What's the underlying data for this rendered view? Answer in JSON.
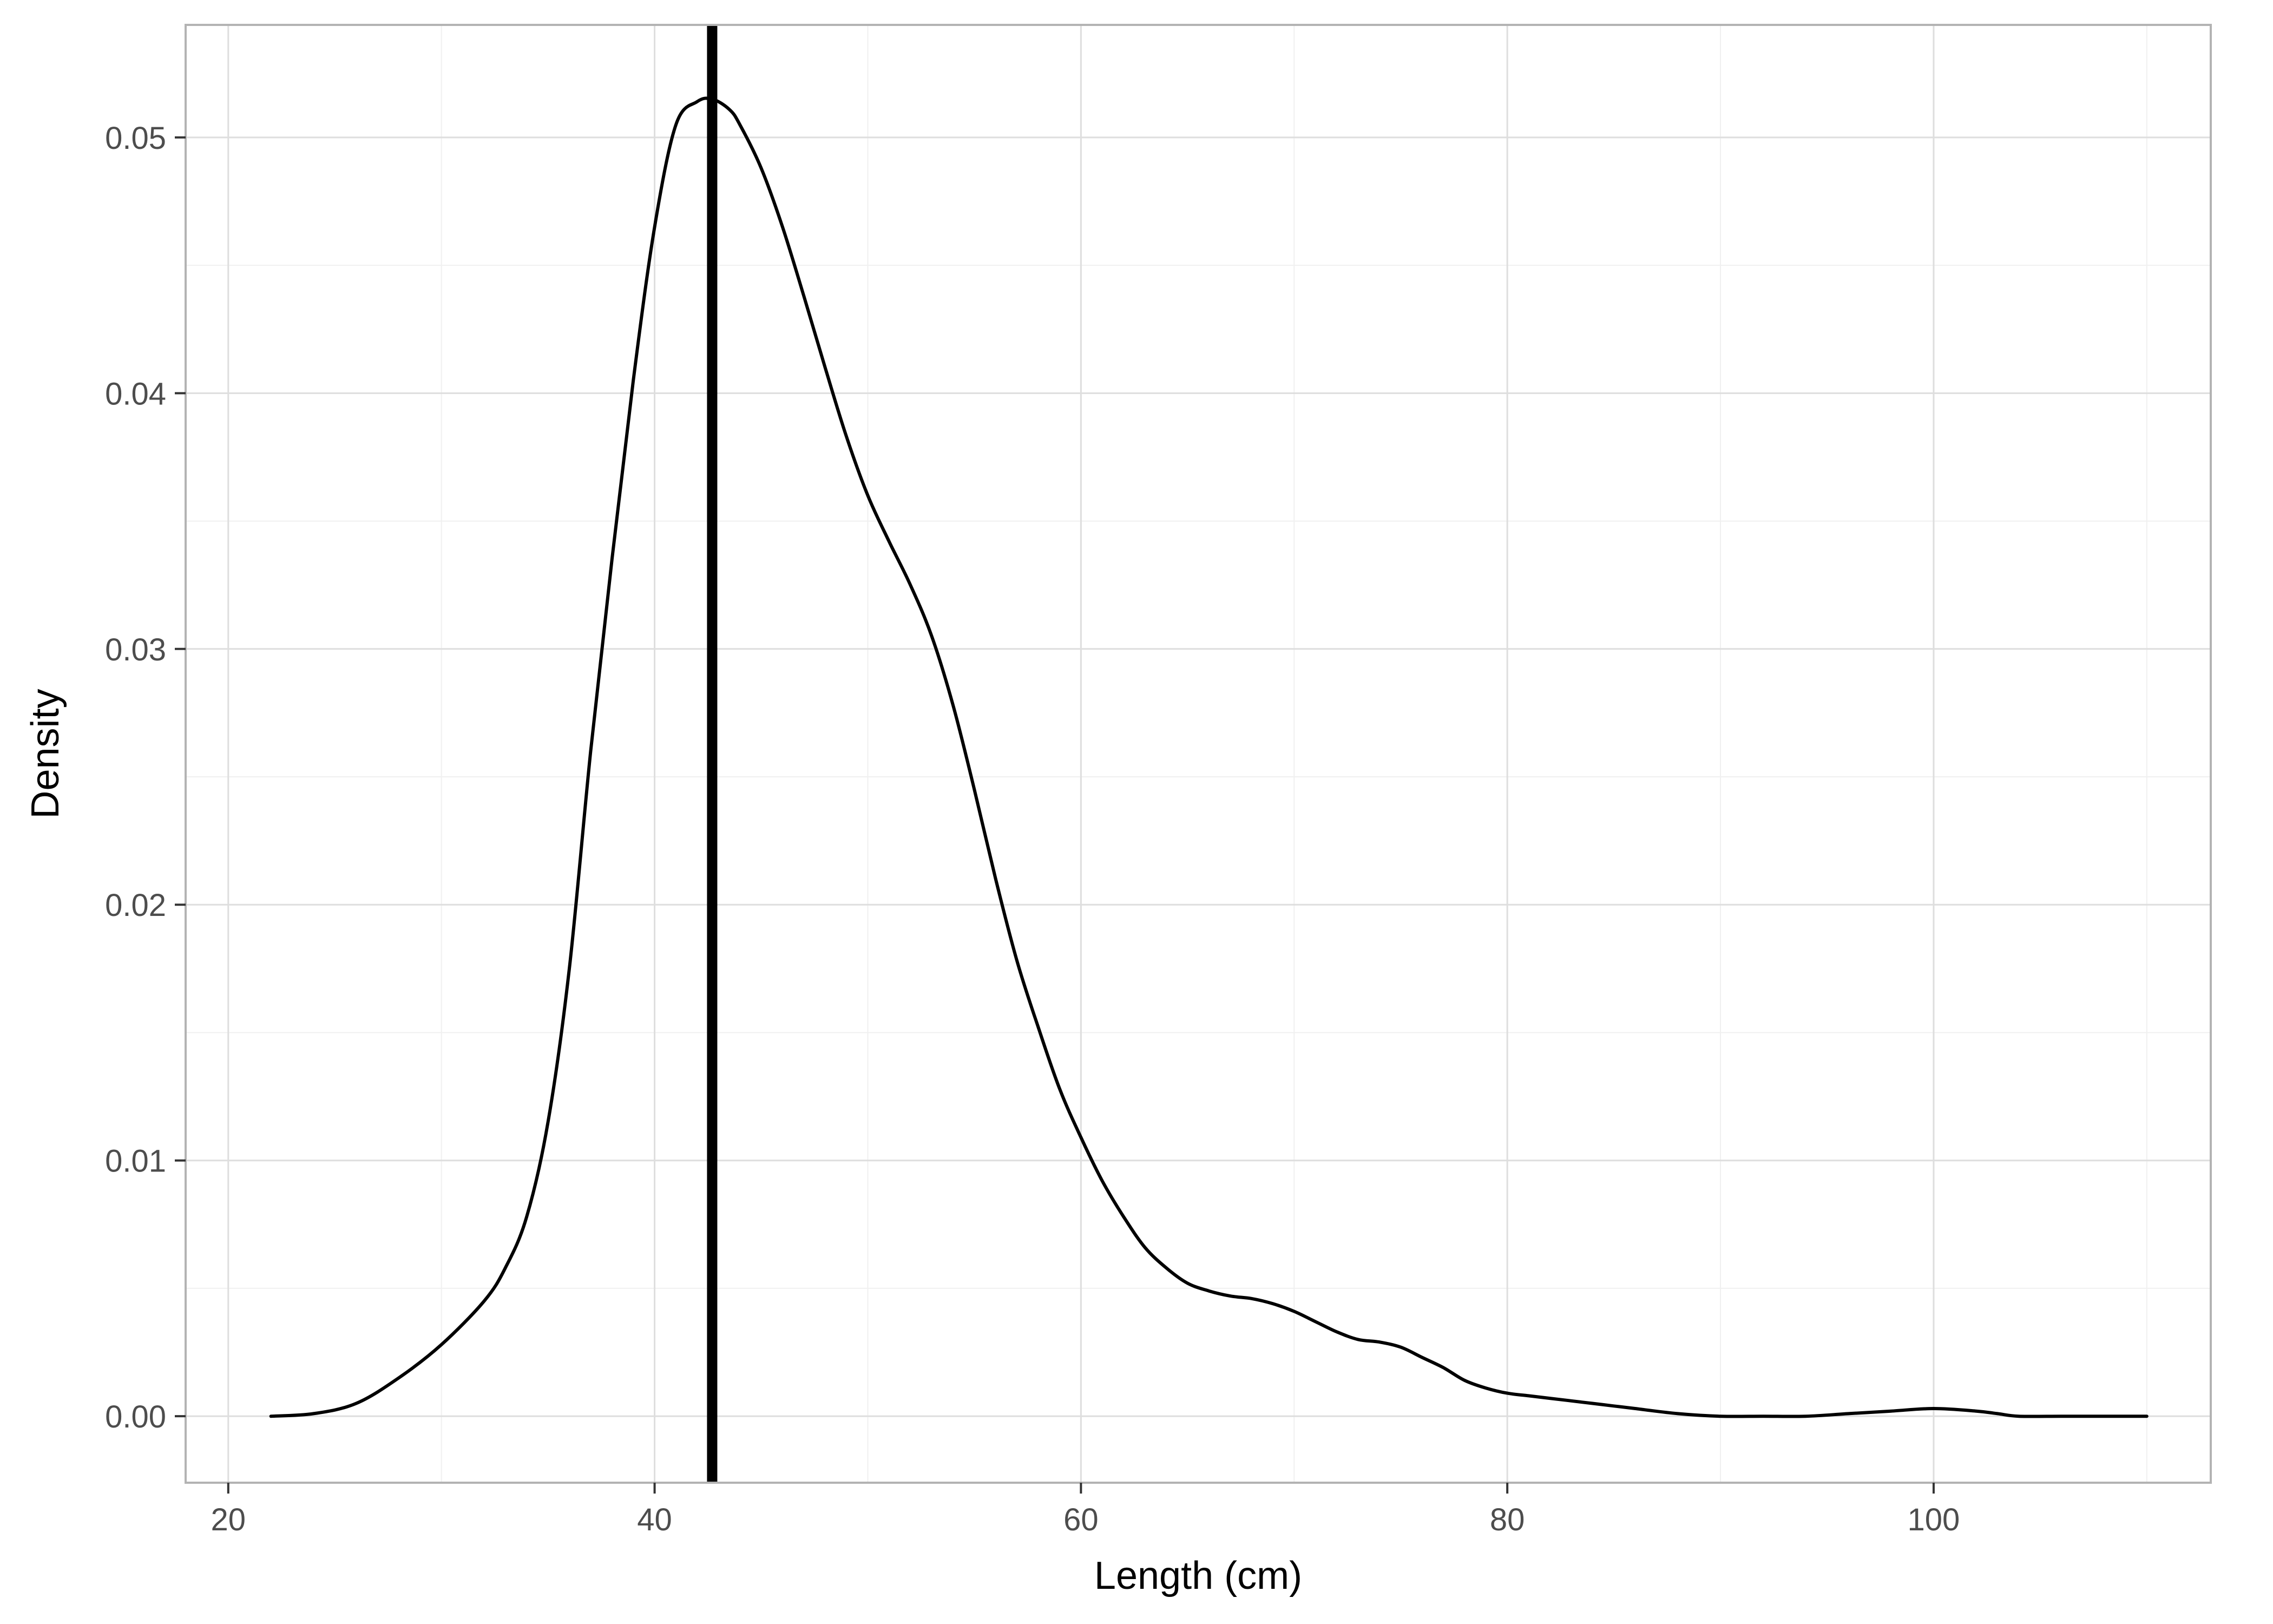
{
  "chart_data": {
    "type": "line",
    "title": "",
    "xlabel": "Length (cm)",
    "ylabel": "Density",
    "xlim": [
      18,
      113
    ],
    "ylim": [
      -0.0026,
      0.0544
    ],
    "x_ticks": [
      20,
      40,
      60,
      80,
      100
    ],
    "x_tick_labels": [
      "20",
      "40",
      "60",
      "80",
      "100"
    ],
    "y_ticks": [
      0.0,
      0.01,
      0.02,
      0.03,
      0.04,
      0.05
    ],
    "y_tick_labels": [
      "0.00",
      "0.01",
      "0.02",
      "0.03",
      "0.04",
      "0.05"
    ],
    "x_minor": [
      30,
      50,
      70,
      90,
      110
    ],
    "y_minor": [
      0.005,
      0.015,
      0.025,
      0.035,
      0.045
    ],
    "grid": true,
    "vertical_line_x": 42.7,
    "series": [
      {
        "x": [
          22,
          24,
          26,
          28,
          30,
          32,
          33,
          34,
          35,
          36,
          37,
          38,
          39,
          40,
          41,
          42,
          42.7,
          43.5,
          44,
          45,
          46,
          47,
          48,
          49,
          50,
          51,
          52,
          53,
          54,
          55,
          56,
          57,
          58,
          59,
          60,
          61,
          62,
          63,
          64,
          65,
          66,
          67,
          68,
          69,
          70,
          71,
          72,
          73,
          74,
          75,
          76,
          77,
          78,
          79,
          80,
          81,
          82,
          83,
          84,
          85,
          86,
          88,
          90,
          92,
          94,
          96,
          98,
          100,
          102,
          103,
          104,
          106,
          108,
          110
        ],
        "y": [
          0.0,
          0.0001,
          0.0005,
          0.0015,
          0.0028,
          0.0045,
          0.0058,
          0.0078,
          0.0115,
          0.0175,
          0.026,
          0.0335,
          0.0405,
          0.0465,
          0.0505,
          0.0514,
          0.0515,
          0.0511,
          0.0505,
          0.0488,
          0.0465,
          0.0438,
          0.041,
          0.0383,
          0.036,
          0.0342,
          0.0325,
          0.0305,
          0.0278,
          0.0245,
          0.021,
          0.0178,
          0.0152,
          0.0128,
          0.0109,
          0.0092,
          0.0078,
          0.0066,
          0.0058,
          0.0052,
          0.0049,
          0.0047,
          0.0046,
          0.0044,
          0.0041,
          0.0037,
          0.0033,
          0.003,
          0.0029,
          0.0027,
          0.0023,
          0.0019,
          0.0014,
          0.0011,
          0.0009,
          0.0008,
          0.0007,
          0.0006,
          0.0005,
          0.0004,
          0.0003,
          0.0001,
          0.0,
          0.0,
          0.0,
          0.0001,
          0.0002,
          0.0003,
          0.0002,
          0.0001,
          0.0,
          0.0,
          0.0,
          0.0
        ]
      }
    ]
  }
}
